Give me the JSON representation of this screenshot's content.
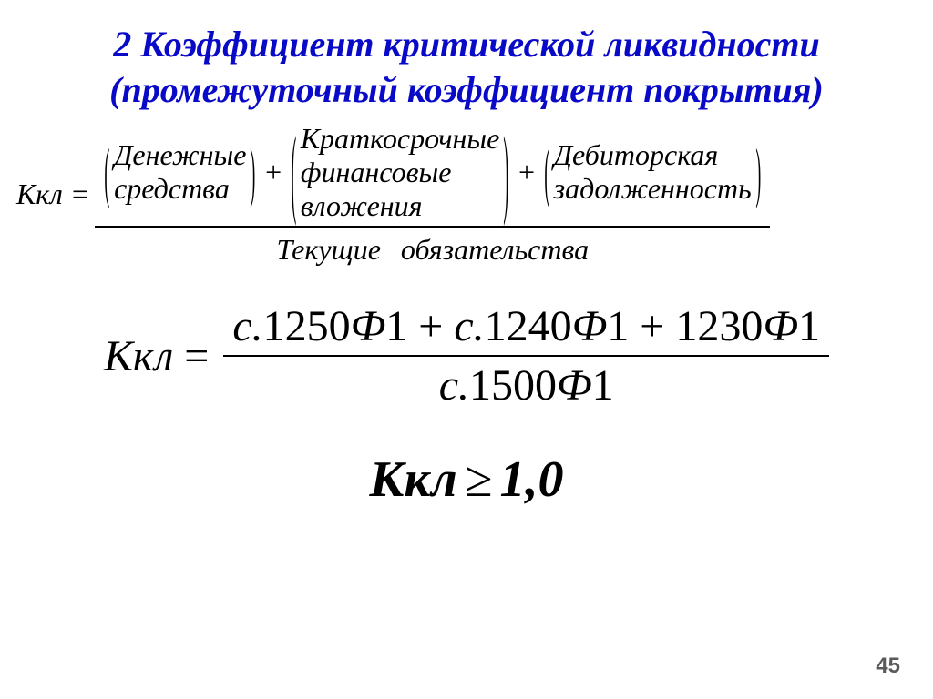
{
  "title": {
    "line1": "2 Коэффициент критической ликвидности",
    "line2": "(промежуточный коэффициент покрытия)",
    "color": "#0909c8",
    "fontsize_pt": 30
  },
  "formula1": {
    "lhs": "Ккл =",
    "lhs_fontsize_pt": 24,
    "body_fontsize_pt": 24,
    "terms": [
      {
        "lines": [
          "Денежные",
          "средства"
        ],
        "bracket_scaleY": 2.3
      },
      {
        "lines": [
          "Краткосрочные",
          "финансовые",
          "вложения"
        ],
        "bracket_scaleY": 3.4
      },
      {
        "lines": [
          "Дебиторская",
          "задолженность"
        ],
        "bracket_scaleY": 2.3
      }
    ],
    "plus": "+",
    "denominator": "Текущие обязательства"
  },
  "formula2": {
    "lhs": "Ккл",
    "eq": "=",
    "fontsize_pt": 36,
    "numerator_parts": [
      "с.",
      "1250",
      "Ф",
      "1",
      "+",
      "с.",
      "1240",
      "Ф",
      "1",
      "+",
      "1230",
      "Ф",
      "1"
    ],
    "denominator_parts": [
      "с.",
      "1500",
      "Ф",
      "1"
    ]
  },
  "formula3": {
    "text_lhs": "Ккл",
    "ge": "≥",
    "text_rhs": "1,0",
    "fontsize_pt": 42
  },
  "page_number": {
    "value": "45",
    "fontsize_pt": 18,
    "color": "#5a5a5a"
  }
}
